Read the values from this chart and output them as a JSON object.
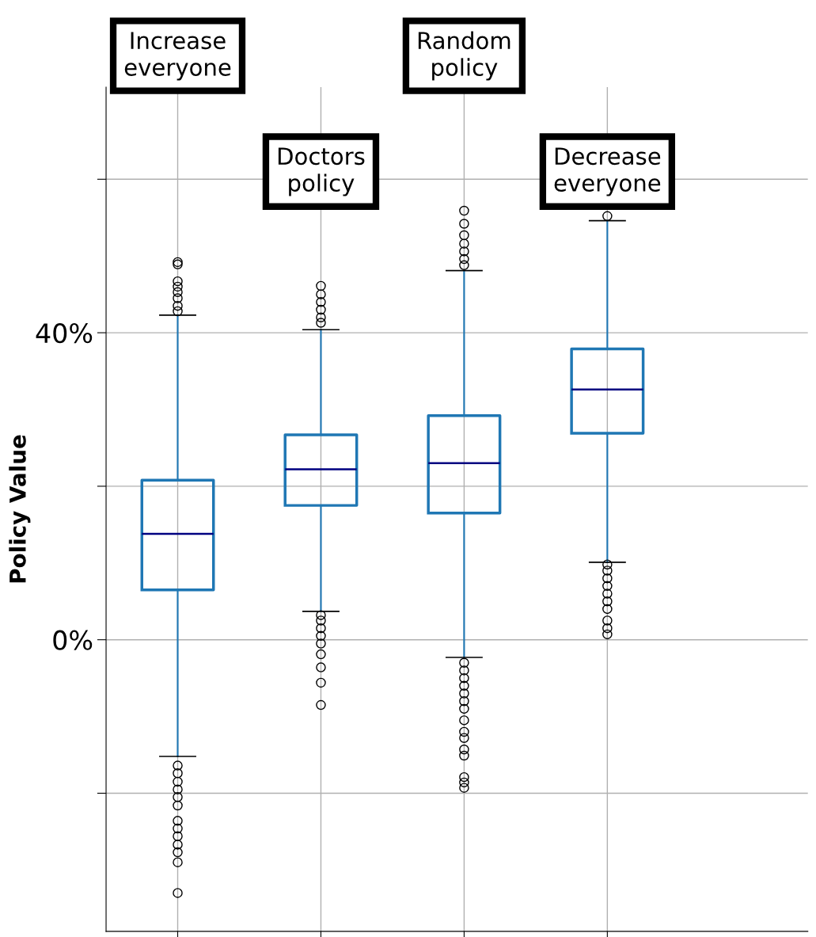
{
  "chart_data": {
    "type": "box",
    "ylabel": "Policy Value",
    "categories": [
      "Increase everyone",
      "Doctors policy",
      "Random policy",
      "Decrease everyone"
    ],
    "boxes": [
      {
        "low": -15.2,
        "q1": 6.5,
        "median": 13.8,
        "q3": 20.8,
        "high": 42.3,
        "outliers": [
          49.2,
          48.9,
          46.7,
          46.0,
          45.3,
          44.5,
          43.5,
          42.8,
          -16.4,
          -17.4,
          -18.5,
          -19.5,
          -20.5,
          -21.6,
          -23.6,
          -24.6,
          -25.6,
          -26.7,
          -27.7,
          -29.0,
          -33.0
        ]
      },
      {
        "low": 3.7,
        "q1": 17.5,
        "median": 22.2,
        "q3": 26.7,
        "high": 40.4,
        "outliers": [
          46.1,
          45.0,
          44.0,
          43.0,
          42.0,
          41.3,
          3.2,
          2.5,
          1.5,
          0.5,
          -0.5,
          -1.9,
          -3.6,
          -5.6,
          -8.5
        ]
      },
      {
        "low": -2.3,
        "q1": 16.5,
        "median": 23.0,
        "q3": 29.2,
        "high": 48.1,
        "outliers": [
          55.9,
          54.2,
          52.7,
          51.6,
          50.6,
          49.6,
          48.8,
          -3.0,
          -4.0,
          -5.0,
          -6.0,
          -7.0,
          -8.0,
          -9.0,
          -10.5,
          -12.0,
          -12.8,
          -14.3,
          -15.1,
          -17.9,
          -18.6,
          -19.3
        ]
      },
      {
        "low": 10.1,
        "q1": 26.9,
        "median": 32.6,
        "q3": 37.9,
        "high": 54.6,
        "outliers": [
          55.2,
          9.8,
          9.0,
          8.0,
          7.0,
          6.0,
          5.0,
          4.0,
          2.5,
          1.5,
          0.7
        ]
      }
    ],
    "color": "#1f77b4",
    "ylim": [
      -38,
      72
    ],
    "yticks": [
      {
        "value": -20,
        "label": null
      },
      {
        "value": 0,
        "label": "0%"
      },
      {
        "value": 20,
        "label": null
      },
      {
        "value": 40,
        "label": "40%"
      },
      {
        "value": 60,
        "label": null
      }
    ],
    "grid": true
  }
}
